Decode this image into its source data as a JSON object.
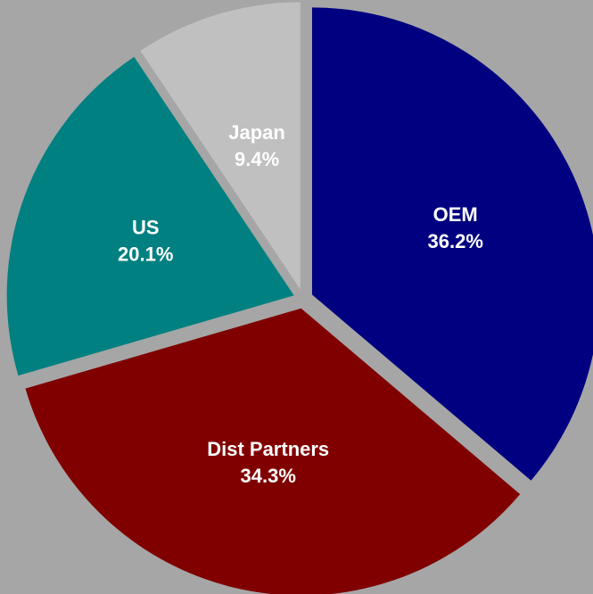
{
  "chart_data": {
    "type": "pie",
    "categories": [
      "OEM",
      "Dist Partners",
      "US",
      "Japan"
    ],
    "values": [
      36.2,
      34.3,
      20.1,
      9.4
    ],
    "value_labels": [
      "36.2%",
      "34.3%",
      "20.1%",
      "9.4%"
    ],
    "colors": [
      "#000080",
      "#800000",
      "#008080",
      "#c0c0c0"
    ]
  }
}
